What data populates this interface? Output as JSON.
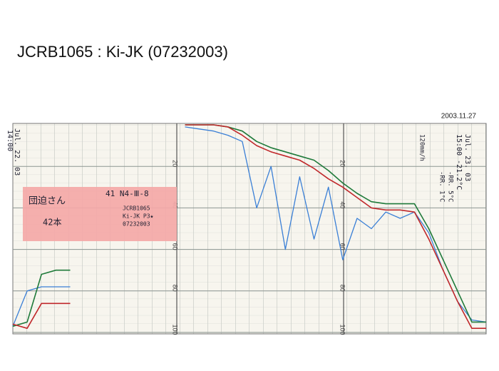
{
  "chart_data": {
    "type": "line",
    "title": "JCRB1065 : Ki-JK (07232003)",
    "subtitle": "2003.11.27",
    "categories": [
      null,
      null,
      null,
      null,
      null,
      null,
      null,
      null,
      null,
      null,
      null,
      null,
      null,
      null,
      null,
      null,
      null,
      null,
      null,
      null,
      null,
      null,
      null,
      null,
      null,
      null,
      null,
      null,
      null,
      null,
      null,
      null,
      null,
      null
    ],
    "series": [
      {
        "name": null,
        "color": "#3a7fd6",
        "values": [
          97,
          80,
          78,
          78,
          78,
          null,
          null,
          null,
          null,
          null,
          null,
          null,
          1,
          2,
          3,
          5,
          8,
          40,
          20,
          60,
          25,
          55,
          30,
          65,
          45,
          50,
          42,
          45,
          42,
          52,
          70,
          85,
          94,
          95
        ]
      },
      {
        "name": null,
        "color": "#1f7a3a",
        "values": [
          97,
          95,
          72,
          70,
          70,
          null,
          null,
          null,
          null,
          null,
          null,
          null,
          0,
          0,
          0,
          1,
          3,
          8,
          11,
          13,
          15,
          17,
          22,
          28,
          33,
          37,
          38,
          38,
          38,
          50,
          65,
          80,
          95,
          95
        ]
      },
      {
        "name": null,
        "color": "#c0282b",
        "values": [
          96,
          98,
          86,
          86,
          86,
          null,
          null,
          null,
          null,
          null,
          null,
          null,
          0,
          0,
          0,
          1,
          5,
          10,
          13,
          15,
          17,
          21,
          26,
          30,
          35,
          40,
          41,
          41,
          42,
          55,
          70,
          85,
          98,
          98
        ]
      }
    ],
    "ylim": [
      0,
      100
    ],
    "yticks": [
      20,
      40,
      60,
      80,
      100
    ],
    "inverted": true,
    "grid": true,
    "annotations": [
      "Jul. 22. 03",
      "14:00",
      "団迫さん",
      "42本",
      "41  N4-Ⅲ-8",
      "JCRB1065",
      "Ki-JK P3★",
      "07232003",
      "Jul. 23. 03",
      "15:00  -21.2°C",
      "-RR. 5°C",
      "-RR. 1°C",
      "120mm/h"
    ]
  }
}
